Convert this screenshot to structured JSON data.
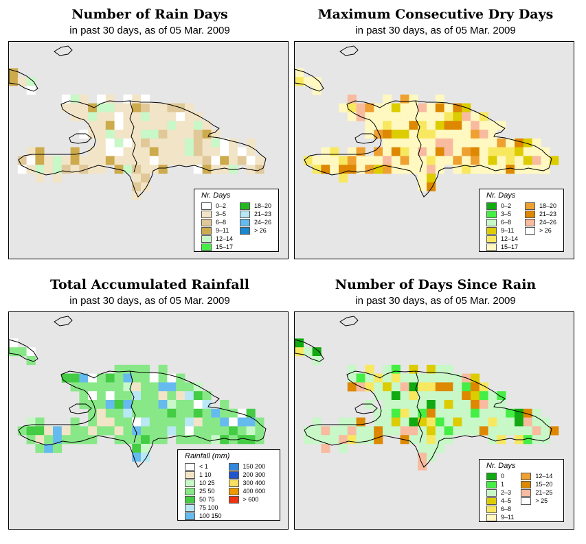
{
  "panels": [
    {
      "title": "Number of Rain Days",
      "subtitle": "in past 30 days, as of  05 Mar. 2009",
      "legend_title": "Nr. Days",
      "legend_rows": 6,
      "legend": [
        {
          "label": "0–2",
          "color": "#ffffff"
        },
        {
          "label": "3–5",
          "color": "#f2e4c6"
        },
        {
          "label": "6–8",
          "color": "#e0c898"
        },
        {
          "label": "9–11",
          "color": "#cdaa4c"
        },
        {
          "label": "12–14",
          "color": "#c8f7c8"
        },
        {
          "label": "15–17",
          "color": "#44ee44"
        },
        {
          "label": "18–20",
          "color": "#22b822"
        },
        {
          "label": "21–23",
          "color": "#b8e8f4"
        },
        {
          "label": "24–26",
          "color": "#66bbee"
        },
        {
          "label": "> 26",
          "color": "#1a88cc"
        }
      ],
      "palette": [
        "#ffffff",
        "#f2e4c6",
        "#e0c898",
        "#cdaa4c",
        "#c8f7c8"
      ],
      "fallback": 1,
      "cells": {
        "20,17": 0,
        "21,17": 0,
        "22,17": 0,
        "23,17": 0,
        "24,17": 0,
        "20,18": 0,
        "21,18": 0,
        "22,18": 0,
        "23,18": 0,
        "15,18": 0,
        "16,18": 0,
        "22,20": 0,
        "23,20": 0,
        "24,20": 0,
        "21,22": 0,
        "22,22": 0,
        "18,22": 0,
        "23,25": 0,
        "24,25": 0,
        "25,25": 0,
        "22,15": 0,
        "23,15": 0,
        "20,21": 0,
        "15,19": 0,
        "16,19": 0,
        "17,19": 0,
        "34,20": 0,
        "35,20": 0,
        "36,20": 0,
        "28,23": 0,
        "29,23": 0,
        "30,23": 0,
        "31,23": 0,
        "37,21": 0,
        "38,21": 0,
        "39,21": 0,
        "18,26": 0,
        "19,26": 0,
        "20,26": 0,
        "21,26": 0,
        "26,16": 0,
        "27,16": 0,
        "28,16": 0,
        "29,16": 0,
        "30,16": 0,
        "31,16": 0,
        "32,16": 0,
        "33,16": 0,
        "34,16": 0,
        "35,16": 0,
        "36,16": 0,
        "32,17": 0,
        "33,17": 0,
        "24,19": 0,
        "25,19": 0,
        "34,22": 0,
        "35,22": 0,
        "36,22": 0,
        "37,22": 0,
        "38,22": 0,
        "44,27": 0,
        "45,27": 0,
        "46,27": 0,
        "47,27": 0,
        "48,27": 0,
        "9,28": 0,
        "10,28": 0,
        "11,28": 0,
        "35,26": 0,
        "36,26": 0,
        "37,26": 0,
        "41,26": 0,
        "42,26": 0,
        "43,26": 0,
        "44,26": 0,
        "45,26": 0,
        "46,26": 0,
        "47,26": 0,
        "48,26": 0,
        "49,26": 0,
        "50,26": 0,
        "36,23": 0,
        "37,23": 0,
        "38,23": 0,
        "39,23": 0,
        "40,23": 0,
        "41,23": 0,
        "42,23": 0,
        "43,23": 0,
        "44,23": 0,
        "45,23": 0,
        "46,23": 0,
        "47,23": 0,
        "48,23": 0,
        "49,23": 0,
        "50,23": 0,
        "51,23": 0,
        "39,24": 0,
        "40,24": 0,
        "41,24": 0,
        "42,24": 0,
        "43,24": 0,
        "44,24": 0,
        "45,24": 0,
        "46,24": 0,
        "47,24": 0,
        "48,24": 0,
        "49,24": 0,
        "50,24": 0,
        "51,24": 0,
        "52,24": 0,
        "14,4": 0,
        "15,4": 0,
        "16,4": 0,
        "17,4": 0,
        "18,4": 0,
        "19,4": 0,
        "20,4": 0,
        "21,4": 0,
        "21,2": 0,
        "22,2": 0,
        "23,2": 0,
        "24,2": 0,
        "16,5": 0,
        "17,5": 0,
        "18,5": 0,
        "19,5": 0,
        "20,5": 0,
        "21,5": 0,
        "22,5": 0,
        "23,5": 0,
        "24,5": 0,
        "5,17": 0,
        "6,17": 0,
        "7,17": 0,
        "8,17": 0,
        "9,17": 0,
        "10,17": 0,
        "11,17": 0,
        "12,17": 0,
        "13,17": 0,
        "14,17": 0,
        "6,18": 0,
        "7,18": 0,
        "8,18": 0,
        "9,18": 0,
        "10,18": 0,
        "11,18": 0,
        "12,18": 0,
        "13,18": 0,
        "14,18": 0,
        "15,22": 0,
        "16,22": 0,
        "17,22": 0,
        "19,22": 0,
        "20,22": 0,
        "23,22": 0,
        "30,25": 0,
        "31,25": 0,
        "32,25": 0,
        "33,25": 0,
        "34,25": 0,
        "35,25": 0,
        "36,25": 0,
        "37,25": 0,
        "38,25": 0,
        "39,25": 0,
        "40,25": 0,
        "41,25": 0,
        "42,25": 0,
        "43,25": 0,
        "44,25": 0,
        "45,25": 0,
        "46,25": 0,
        "47,25": 0,
        "48,25": 0,
        "49,25": 0,
        "50,25": 0,
        "51,25": 0,
        "52,25": 0,
        "53,25": 0,
        "54,25": 0,
        "55,25": 0,
        "56,25": 0,
        "57,25": 0,
        "58,25": 0,
        "59,25": 0,
        "60,25": 0,
        "61,25": 0,
        "62,25": 0,
        "22,24": 0,
        "23,24": 0,
        "24,24": 0,
        "25,24": 0,
        "26,24": 0,
        "27,24": 0,
        "28,24": 0,
        "29,24": 0,
        "30,24": 0,
        "31,24": 0,
        "32,24": 0,
        "33,24": 0,
        "34,24": 0,
        "35,24": 0,
        "36,24": 0,
        "37,24": 0,
        "38,24": 0,
        "53,24": 0,
        "54,24": 0,
        "55,24": 0,
        "56,24": 0,
        "57,24": 0,
        "58,24": 0,
        "59,24": 0,
        "60,24": 0,
        "61,24": 0,
        "62,24": 0,
        "24,22": 0,
        "25,22": 0,
        "26,22": 0,
        "27,22": 0,
        "28,22": 0,
        "29,22": 0,
        "30,22": 0,
        "31,22": 0,
        "32,22": 0,
        "33,22": 0,
        "39,22": 0,
        "40,22": 0,
        "41,22": 0,
        "42,22": 0,
        "43,22": 0,
        "44,22": 0,
        "45,22": 0,
        "46,22": 0,
        "47,22": 0,
        "48,22": 0,
        "49,22": 0,
        "50,22": 0,
        "51,22": 0,
        "52,22": 0,
        "53,22": 0,
        "54,22": 0,
        "55,22": 0,
        "56,22": 0,
        "57,22": 0,
        "58,22": 0,
        "59,22": 0,
        "60,22": 0,
        "61,22": 0,
        "62,22": 0,
        "24,21": 0,
        "25,21": 0,
        "26,21": 0,
        "27,21": 0,
        "28,21": 0,
        "29,21": 0,
        "30,21": 0,
        "31,21": 0,
        "32,21": 0,
        "33,21": 0,
        "34,21": 0,
        "35,21": 0,
        "36,21": 0,
        "40,21": 0,
        "41,21": 0,
        "42,21": 0,
        "43,21": 0,
        "44,21": 0,
        "45,21": 0,
        "46,21": 0,
        "47,21": 0,
        "48,21": 0,
        "49,21": 0,
        "50,21": 0,
        "51,21": 0,
        "52,21": 0,
        "53,21": 0,
        "54,21": 0,
        "55,21": 0,
        "56,21": 0,
        "57,21": 0,
        "58,21": 0,
        "59,21": 0,
        "60,21": 0,
        "61,21": 0,
        "62,21": 0
      }
    },
    {
      "title": "Maximum Consecutive Dry Days",
      "subtitle": "in past 30 days, as of  05 Mar. 2009",
      "legend_title": "Nr. Days",
      "legend_rows": 6,
      "legend": [
        {
          "label": "0–2",
          "color": "#11aa11"
        },
        {
          "label": "3–5",
          "color": "#44ee44"
        },
        {
          "label": "6–8",
          "color": "#c8f7c8"
        },
        {
          "label": "9–11",
          "color": "#dccc00"
        },
        {
          "label": "12–14",
          "color": "#f8e860"
        },
        {
          "label": "15–17",
          "color": "#fff8c0"
        },
        {
          "label": "18–20",
          "color": "#eea030"
        },
        {
          "label": "21–23",
          "color": "#dd8800"
        },
        {
          "label": "24–26",
          "color": "#f8bba0"
        },
        {
          "label": "> 26",
          "color": "#ffffff"
        }
      ],
      "palette": [
        "#fff8c0",
        "#f8e860",
        "#eea030",
        "#dd8800",
        "#dccc00",
        "#f8bba0"
      ],
      "fallback": 0,
      "cells": {}
    },
    {
      "title": "Total Accumulated Rainfall",
      "subtitle": "in past 30 days, as of  05 Mar. 2009",
      "legend_title": "Rainfall (mm)",
      "legend_rows": 7,
      "legend": [
        {
          "label": "< 1",
          "color": "#ffffff"
        },
        {
          "label": "1    10",
          "color": "#f2e4c6"
        },
        {
          "label": "10    25",
          "color": "#c8f7c8"
        },
        {
          "label": "25    50",
          "color": "#88e888"
        },
        {
          "label": "50    75",
          "color": "#44cc44"
        },
        {
          "label": "75  100",
          "color": "#b8e8f4"
        },
        {
          "label": "100  150",
          "color": "#66bbee"
        },
        {
          "label": "150  200",
          "color": "#3388dd"
        },
        {
          "label": "200  300",
          "color": "#2255cc"
        },
        {
          "label": "300  400",
          "color": "#f8e060"
        },
        {
          "label": "400  600",
          "color": "#ee9900"
        },
        {
          "label": "> 600",
          "color": "#ee3311"
        }
      ],
      "palette": [
        "#f2e4c6",
        "#c8f7c8",
        "#88e888",
        "#44cc44",
        "#b8e8f4",
        "#66bbee",
        "#ffffff"
      ],
      "fallback": 2,
      "cells": {}
    },
    {
      "title": "Number of Days Since Rain",
      "subtitle": "in past 30 days, as of  05 Mar. 2009",
      "legend_title": "Nr. Days",
      "legend_rows": 6,
      "legend": [
        {
          "label": "0",
          "color": "#11aa11"
        },
        {
          "label": "1",
          "color": "#44ee44"
        },
        {
          "label": "2–3",
          "color": "#c8f7c8"
        },
        {
          "label": "4–5",
          "color": "#dccc00"
        },
        {
          "label": "6–8",
          "color": "#f8e860"
        },
        {
          "label": "9–11",
          "color": "#fff8c0"
        },
        {
          "label": "12–14",
          "color": "#eea030"
        },
        {
          "label": "15–20",
          "color": "#dd8800"
        },
        {
          "label": "21–25",
          "color": "#f8bba0"
        },
        {
          "label": "> 25",
          "color": "#ffffff"
        }
      ],
      "palette": [
        "#c8f7c8",
        "#44ee44",
        "#11aa11",
        "#dccc00",
        "#f8e860",
        "#f8bba0",
        "#dd8800"
      ],
      "fallback": 0,
      "cells": {}
    }
  ]
}
